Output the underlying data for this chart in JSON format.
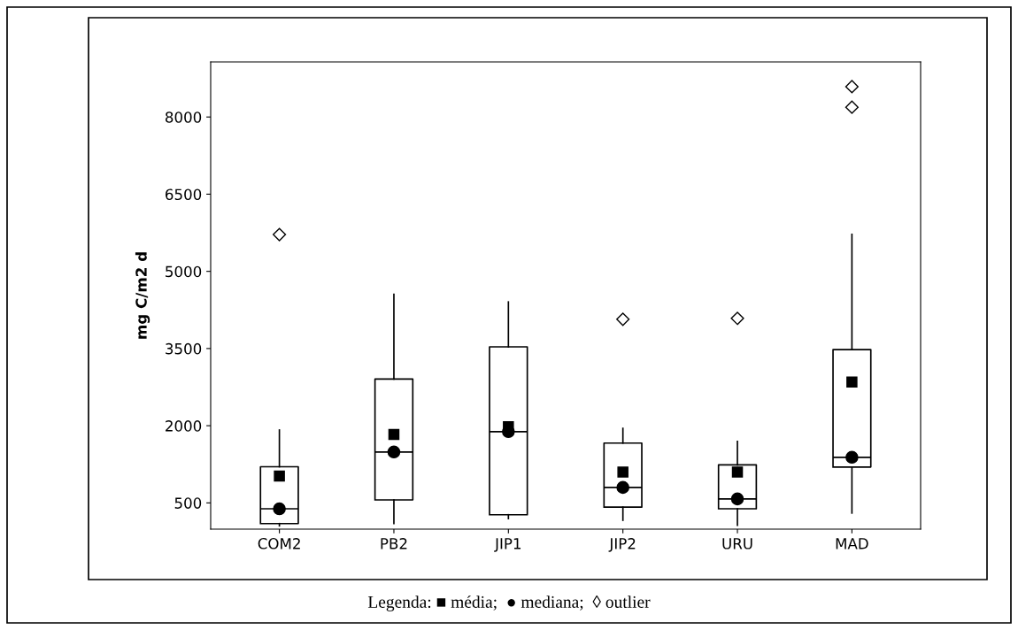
{
  "chart_data": {
    "type": "box",
    "ylabel": "mg C/m2 d",
    "categories": [
      "COM2",
      "PB2",
      "JIP1",
      "JIP2",
      "URU",
      "MAD"
    ],
    "boxes": [
      {
        "low": 53,
        "q1": 98,
        "median": 385,
        "q3": 1202,
        "high": 1917,
        "mean": 1023,
        "outliers": [
          5715
        ]
      },
      {
        "low": 98,
        "q1": 557,
        "median": 1489,
        "q3": 2906,
        "high": 4553,
        "mean": 1828
      },
      {
        "low": 194,
        "q1": 270,
        "median": 1885,
        "q3": 3532,
        "high": 4406,
        "mean": 1981
      },
      {
        "low": 162,
        "q1": 417,
        "median": 800,
        "q3": 1662,
        "high": 1949,
        "mean": 1100,
        "outliers": [
          4068
        ]
      },
      {
        "low": 66,
        "q1": 385,
        "median": 577,
        "q3": 1240,
        "high": 1694,
        "mean": 1100,
        "outliers": [
          4087
        ]
      },
      {
        "low": 302,
        "q1": 1197,
        "median": 1386,
        "q3": 3480,
        "high": 5720,
        "mean": 2848,
        "outliers": [
          8190,
          8590
        ]
      }
    ],
    "ylim": [
      -10,
      9070
    ],
    "yticks": [
      500,
      2000,
      3500,
      5000,
      6500,
      8000
    ],
    "grid": false,
    "series": [
      {
        "type": "scatter",
        "marker": "circle",
        "color": "#000000",
        "x": [
          "COM2",
          "PB2",
          "JIP1",
          "JIP2",
          "URU",
          "MAD"
        ],
        "values": [
          385,
          1489,
          1885,
          800,
          577,
          1386
        ]
      }
    ],
    "annotations": [
      "Legenda: ■ média;  ● mediana;  ◊ outlier"
    ]
  }
}
